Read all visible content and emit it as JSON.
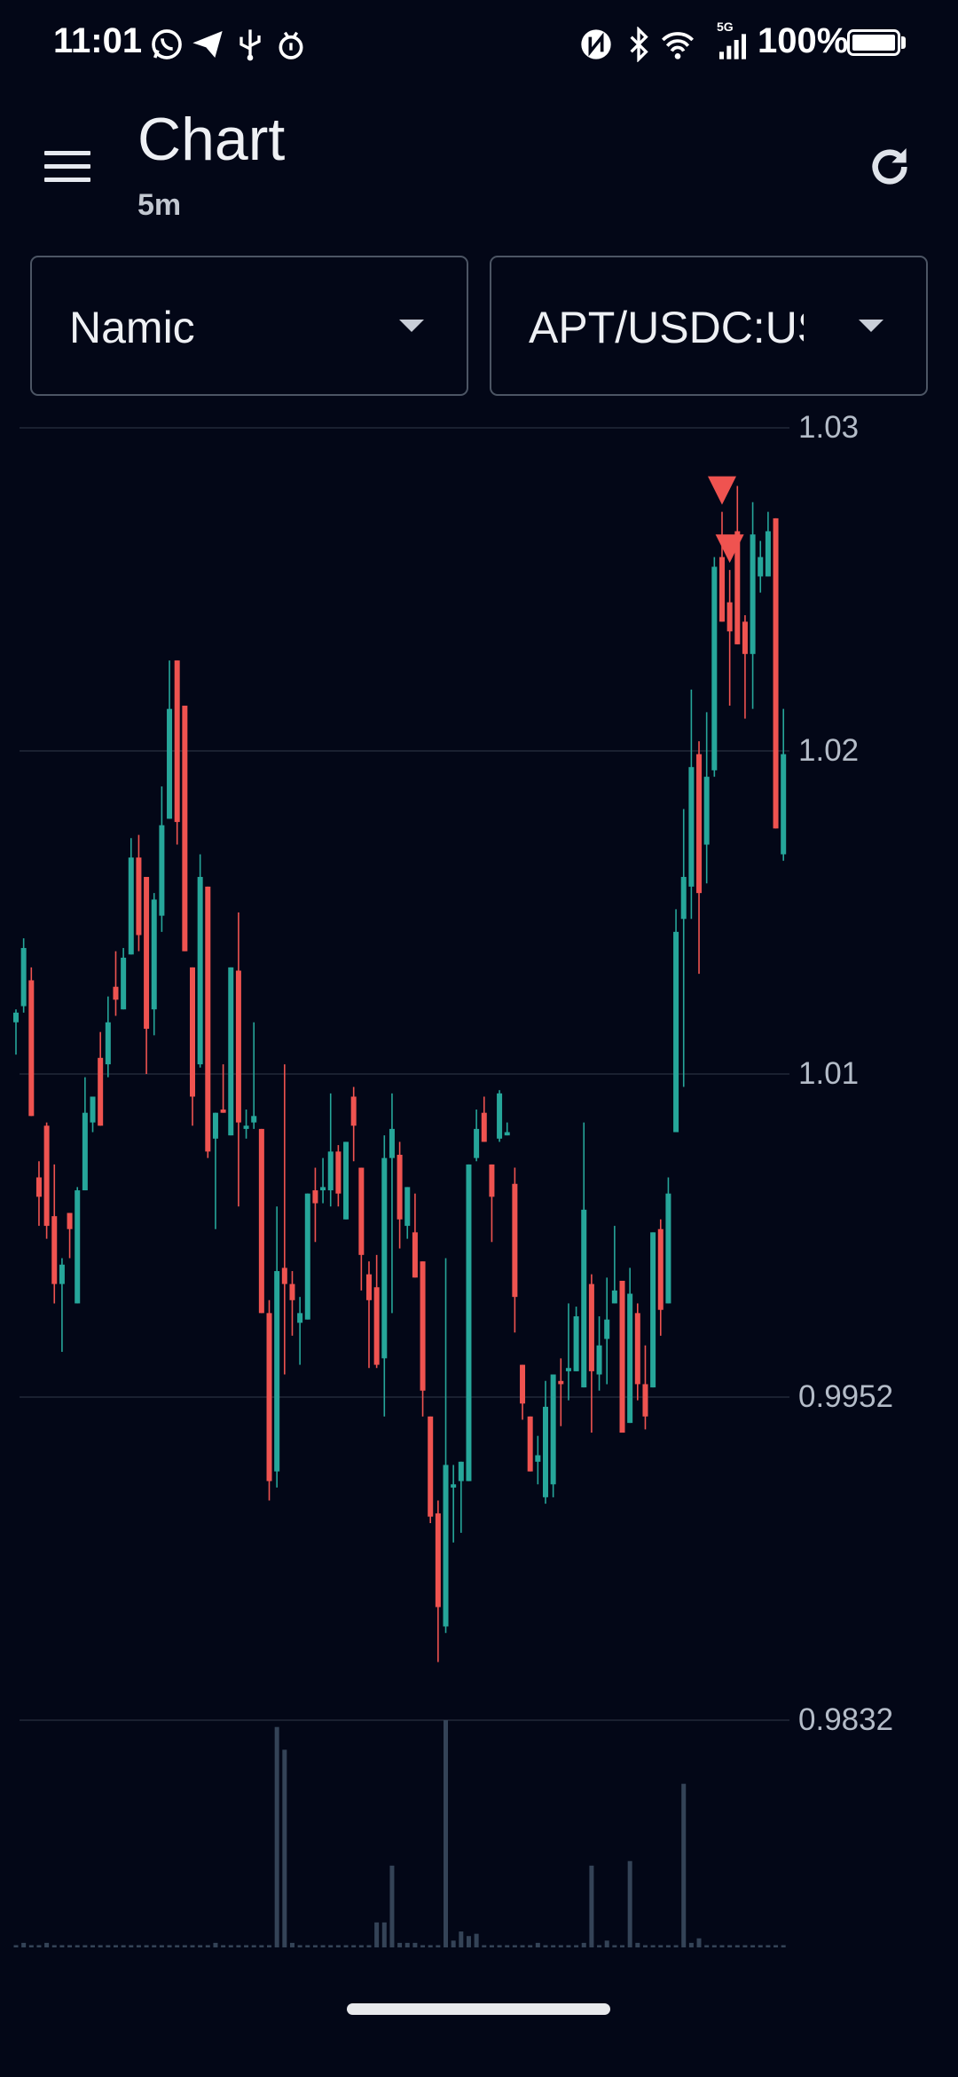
{
  "status_bar": {
    "time": "11:01",
    "left_icons": [
      "whatsapp-icon",
      "telegram-icon",
      "usb-icon",
      "debug-icon"
    ],
    "right_icons": [
      "nfc-icon",
      "bluetooth-icon",
      "wifi-icon",
      "signal-icon"
    ],
    "network": "5G",
    "battery": "100%",
    "battery_level": 1.0
  },
  "app_bar": {
    "title": "Chart",
    "subtitle": "5m",
    "menu_icon": "hamburger-icon",
    "refresh_icon": "refresh-icon"
  },
  "selectors": {
    "strategy": "Namic",
    "pair": "APT/USDC:US"
  },
  "colors": {
    "background": "#030717",
    "up": "#26a69a",
    "down": "#ef5350",
    "volume": "#344357",
    "grid": "#1a2030",
    "marker_sell": "#ef5350"
  },
  "chart_data": {
    "type": "candlestick",
    "timeframe": "5m",
    "y_tick_labels": [
      "1.03",
      "1.02",
      "1.01",
      "0.9952",
      "0.9832"
    ],
    "ylim": [
      0.9832,
      1.03
    ],
    "grid": true,
    "ohlc_format": [
      "open",
      "high",
      "low",
      "close"
    ],
    "candles": [
      [
        1.0116,
        1.012,
        1.0106,
        1.0119
      ],
      [
        1.0121,
        1.0142,
        1.0119,
        1.0139
      ],
      [
        1.0129,
        1.0133,
        1.0087,
        1.0087
      ],
      [
        1.0068,
        1.0073,
        1.0053,
        1.0062
      ],
      [
        1.0084,
        1.0085,
        1.0049,
        1.0053
      ],
      [
        1.0056,
        1.0072,
        1.0029,
        1.0035
      ],
      [
        1.0035,
        1.0043,
        1.0014,
        1.0041
      ],
      [
        1.0057,
        1.0057,
        1.0043,
        1.0052
      ],
      [
        1.0029,
        1.0065,
        1.0029,
        1.0064
      ],
      [
        1.0064,
        1.0099,
        1.0064,
        1.0088
      ],
      [
        1.0085,
        1.0093,
        1.0082,
        1.0093
      ],
      [
        1.0105,
        1.0113,
        1.0084,
        1.0084
      ],
      [
        1.0103,
        1.0124,
        1.0099,
        1.0116
      ],
      [
        1.0127,
        1.0138,
        1.0118,
        1.0123
      ],
      [
        1.012,
        1.0139,
        1.012,
        1.0136
      ],
      [
        1.0137,
        1.0173,
        1.0137,
        1.0167
      ],
      [
        1.0167,
        1.0174,
        1.0138,
        1.0143
      ],
      [
        1.0161,
        1.0161,
        1.01,
        1.0114
      ],
      [
        1.012,
        1.0156,
        1.0112,
        1.0154
      ],
      [
        1.0149,
        1.0189,
        1.0144,
        1.0177
      ],
      [
        1.0179,
        1.0228,
        1.0179,
        1.0213
      ],
      [
        1.0228,
        1.0228,
        1.0171,
        1.0178
      ],
      [
        1.0214,
        1.0214,
        1.0138,
        1.0138
      ],
      [
        1.0133,
        1.0133,
        1.0084,
        1.0093
      ],
      [
        1.0103,
        1.0168,
        1.0102,
        1.0161
      ],
      [
        1.0158,
        1.0158,
        1.0074,
        1.0076
      ],
      [
        1.008,
        1.0088,
        1.0052,
        1.0088
      ],
      [
        1.0089,
        1.0103,
        1.0088,
        1.0088
      ],
      [
        1.0081,
        1.0133,
        1.0081,
        1.0133
      ],
      [
        1.0132,
        1.015,
        1.0059,
        1.0085
      ],
      [
        1.0083,
        1.0089,
        1.008,
        1.0084
      ],
      [
        1.0085,
        1.0116,
        1.0083,
        1.0087
      ],
      [
        1.0083,
        1.0083,
        1.0026,
        1.0026
      ],
      [
        1.0026,
        1.003,
        0.9968,
        0.9974
      ],
      [
        0.9977,
        1.0059,
        0.9972,
        1.0039
      ],
      [
        1.004,
        1.0103,
        1.0007,
        1.0035
      ],
      [
        1.0035,
        1.0039,
        1.0019,
        1.003
      ],
      [
        1.0023,
        1.0031,
        1.001,
        1.0026
      ],
      [
        1.0024,
        1.0063,
        1.0024,
        1.0063
      ],
      [
        1.0064,
        1.0071,
        1.0048,
        1.006
      ],
      [
        1.0064,
        1.0074,
        1.006,
        1.0065
      ],
      [
        1.0064,
        1.0094,
        1.0059,
        1.0076
      ],
      [
        1.0076,
        1.0078,
        1.0059,
        1.0063
      ],
      [
        1.0055,
        1.0079,
        1.0055,
        1.0079
      ],
      [
        1.0093,
        1.0096,
        1.0073,
        1.0084
      ],
      [
        1.0071,
        1.0071,
        1.0033,
        1.0044
      ],
      [
        1.0038,
        1.0042,
        1.0009,
        1.003
      ],
      [
        1.0034,
        1.0044,
        1.0009,
        1.001
      ],
      [
        1.0012,
        1.0081,
        0.9994,
        1.0074
      ],
      [
        1.0074,
        1.0094,
        1.0026,
        1.0083
      ],
      [
        1.0075,
        1.0079,
        1.0046,
        1.0055
      ],
      [
        1.0053,
        1.0065,
        1.0049,
        1.0065
      ],
      [
        1.0051,
        1.0063,
        1.0037,
        1.0037
      ],
      [
        1.0042,
        1.0042,
        0.9994,
        1.0002
      ],
      [
        0.9994,
        0.9994,
        0.9961,
        0.9963
      ],
      [
        0.9964,
        0.9968,
        0.9918,
        0.9935
      ],
      [
        0.9929,
        1.0043,
        0.9927,
        0.9979
      ],
      [
        0.9972,
        0.9979,
        0.9955,
        0.9973
      ],
      [
        0.9974,
        0.998,
        0.9958,
        0.998
      ],
      [
        0.9974,
        1.0072,
        0.9974,
        1.0072
      ],
      [
        1.0074,
        1.0089,
        1.0073,
        1.0083
      ],
      [
        1.0088,
        1.0093,
        1.0079,
        1.0079
      ],
      [
        1.0072,
        1.0072,
        1.0048,
        1.0062
      ],
      [
        1.008,
        1.0095,
        1.0079,
        1.0094
      ],
      [
        1.0081,
        1.0085,
        1.0081,
        1.0082
      ],
      [
        1.0066,
        1.0071,
        1.002,
        1.0031
      ],
      [
        1.001,
        1.001,
        0.9993,
        0.9998
      ],
      [
        0.9994,
        0.9994,
        0.9977,
        0.9977
      ],
      [
        0.998,
        0.9988,
        0.9973,
        0.9982
      ],
      [
        0.9969,
        1.0005,
        0.9967,
        0.9997
      ],
      [
        0.9973,
        1.0007,
        0.9969,
        1.0007
      ],
      [
        1.0005,
        1.0012,
        0.9991,
        1.0004
      ],
      [
        1.0008,
        1.0029,
        0.9999,
        1.0009
      ],
      [
        1.0008,
        1.0028,
        1.0008,
        1.0025
      ],
      [
        1.0003,
        1.0085,
        1.0003,
        1.0058
      ],
      [
        1.0035,
        1.0038,
        0.9989,
        1.0008
      ],
      [
        1.0007,
        1.0025,
        1.0002,
        1.0016
      ],
      [
        1.0018,
        1.0037,
        1.0004,
        1.0024
      ],
      [
        1.0029,
        1.0053,
        1.0029,
        1.0033
      ],
      [
        1.0036,
        1.0036,
        0.9989,
        0.9989
      ],
      [
        0.9992,
        1.004,
        0.9992,
        1.0032
      ],
      [
        1.0026,
        1.0029,
        0.9999,
        1.0004
      ],
      [
        1.0004,
        1.0016,
        0.999,
        0.9994
      ],
      [
        1.0003,
        1.0051,
        1.0003,
        1.0051
      ],
      [
        1.0052,
        1.0055,
        1.0019,
        1.0027
      ],
      [
        1.0029,
        1.0068,
        1.0029,
        1.0063
      ],
      [
        1.0082,
        1.0151,
        1.0082,
        1.0144
      ],
      [
        1.0148,
        1.0182,
        1.0096,
        1.0161
      ],
      [
        1.0158,
        1.0219,
        1.0148,
        1.0195
      ],
      [
        1.0199,
        1.0203,
        1.0131,
        1.0156
      ],
      [
        1.0171,
        1.0212,
        1.0159,
        1.0192
      ],
      [
        1.0194,
        1.026,
        1.0192,
        1.0257
      ],
      [
        1.026,
        1.0274,
        1.024,
        1.024
      ],
      [
        1.0246,
        1.0256,
        1.0214,
        1.0237
      ],
      [
        1.0268,
        1.0282,
        1.0233,
        1.0233
      ],
      [
        1.024,
        1.0242,
        1.021,
        1.023
      ],
      [
        1.023,
        1.0277,
        1.0213,
        1.0267
      ],
      [
        1.0254,
        1.0265,
        1.0249,
        1.026
      ],
      [
        1.0254,
        1.0274,
        1.0254,
        1.0268
      ],
      [
        1.0272,
        1.0272,
        1.0176,
        1.0176
      ],
      [
        1.0168,
        1.0213,
        1.0166,
        1.0199
      ]
    ],
    "volume_relative": [
      1,
      2,
      1,
      1,
      2,
      1,
      1,
      1,
      1,
      1,
      1,
      1,
      1,
      1,
      1,
      1,
      1,
      1,
      1,
      1,
      1,
      1,
      1,
      1,
      1,
      1,
      2,
      1,
      1,
      1,
      1,
      1,
      1,
      1,
      97,
      87,
      2,
      1,
      1,
      1,
      1,
      1,
      1,
      1,
      1,
      1,
      1,
      11,
      11,
      36,
      2,
      2,
      2,
      1,
      1,
      1,
      100,
      3,
      7,
      5,
      6,
      1,
      1,
      1,
      1,
      1,
      1,
      1,
      2,
      1,
      1,
      1,
      1,
      1,
      2,
      36,
      1,
      3,
      1,
      1,
      38,
      2,
      1,
      1,
      1,
      1,
      1,
      72,
      2,
      4,
      1,
      1,
      1,
      1,
      1,
      1,
      1,
      1,
      1,
      1,
      1
    ],
    "markers": [
      {
        "candle": 92,
        "type": "sell",
        "shape": "triangle-down"
      },
      {
        "candle": 93,
        "type": "sell",
        "shape": "triangle-down"
      }
    ]
  }
}
